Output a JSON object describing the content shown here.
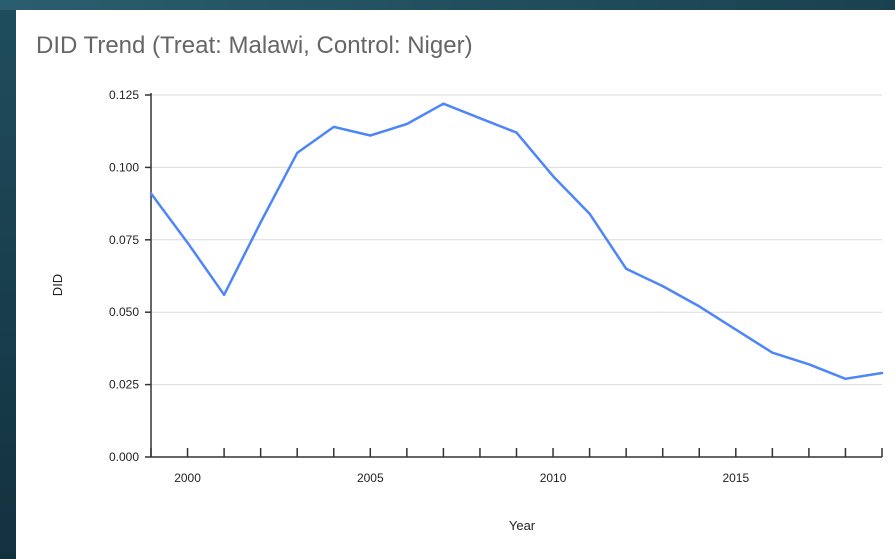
{
  "chart_data": {
    "type": "line",
    "title": "DID Trend (Treat: Malawi, Control: Niger)",
    "xlabel": "Year",
    "ylabel": "DID",
    "xlim": [
      1999,
      2019
    ],
    "ylim": [
      0,
      0.125
    ],
    "x_ticks": [
      2000,
      2005,
      2010,
      2015
    ],
    "y_ticks": [
      "0.000",
      "0.025",
      "0.050",
      "0.075",
      "0.100",
      "0.125"
    ],
    "grid": true,
    "legend": "none",
    "series": [
      {
        "color": "#4f86f7",
        "x": [
          1999,
          2000,
          2001,
          2002,
          2003,
          2004,
          2005,
          2006,
          2007,
          2008,
          2009,
          2010,
          2011,
          2012,
          2013,
          2014,
          2015,
          2016,
          2017,
          2018,
          2019
        ],
        "values": [
          0.091,
          0.074,
          0.056,
          0.081,
          0.105,
          0.114,
          0.111,
          0.115,
          0.122,
          0.117,
          0.112,
          0.097,
          0.084,
          0.065,
          0.059,
          0.052,
          0.044,
          0.036,
          0.032,
          0.027,
          0.029
        ]
      }
    ]
  }
}
